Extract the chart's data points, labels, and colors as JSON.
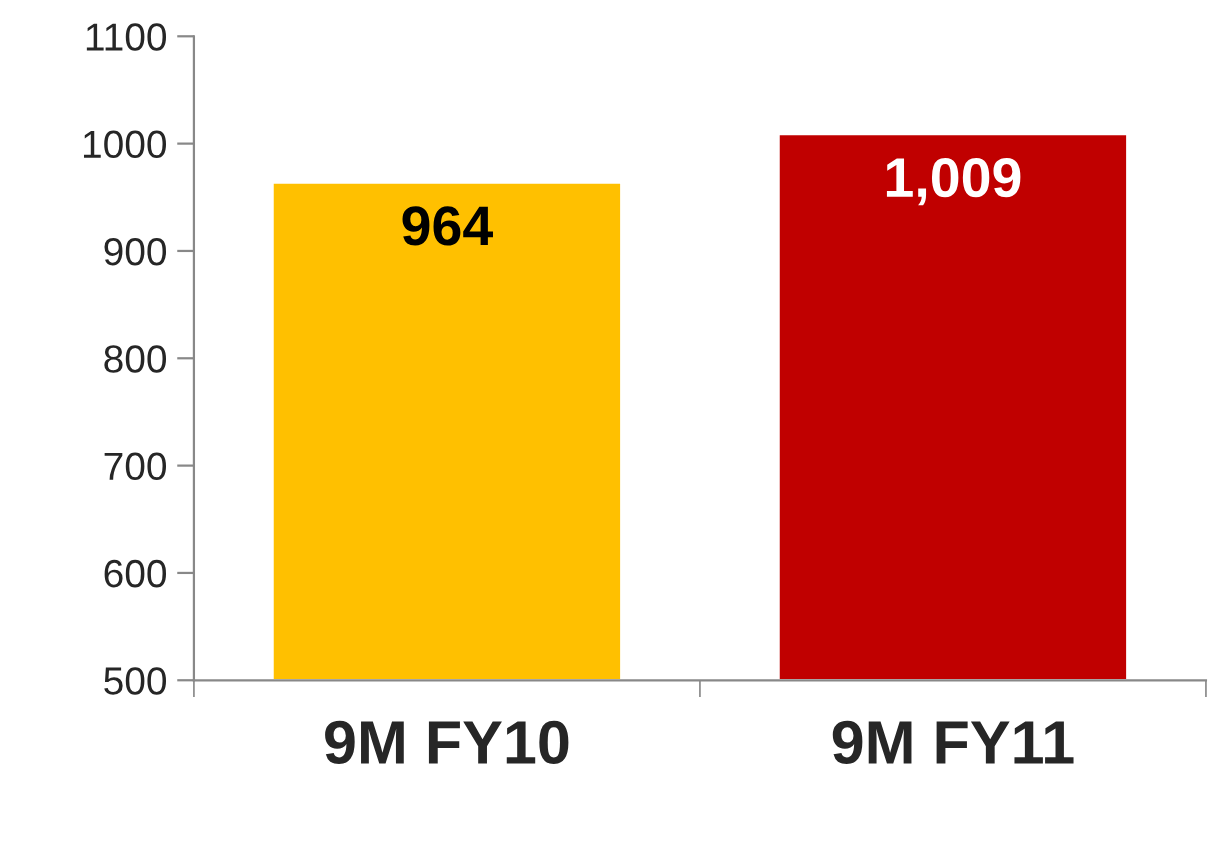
{
  "chart_data": {
    "type": "bar",
    "categories": [
      "9M FY10",
      "9M FY11"
    ],
    "values": [
      964,
      1009
    ],
    "colors": [
      "#ffc000",
      "#c00000"
    ],
    "value_labels": [
      "964",
      "1,009"
    ],
    "ylim": [
      500,
      1100
    ],
    "yticks": [
      500,
      600,
      700,
      800,
      900,
      1000,
      1100
    ],
    "grid": false,
    "legend": false
  }
}
